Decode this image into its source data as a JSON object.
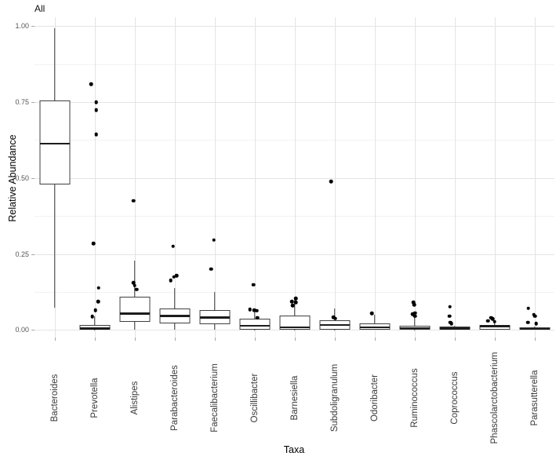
{
  "title": "All",
  "y_axis": {
    "label": "Relative Abundance"
  },
  "x_axis": {
    "label": "Taxa"
  },
  "chart_data": {
    "type": "boxplot",
    "title": "All",
    "xlabel": "Taxa",
    "ylabel": "Relative Abundance",
    "ylim": [
      0,
      1.0
    ],
    "grid": true,
    "legend": "none",
    "y_ticks": [
      {
        "label": "1.00",
        "value": 1.0
      },
      {
        "label": "0.75",
        "value": 0.75
      },
      {
        "label": "0.50",
        "value": 0.5
      },
      {
        "label": "0.25",
        "value": 0.25
      },
      {
        "label": "0.00",
        "value": 0.0
      }
    ],
    "y_minor_gridlines": [
      0.875,
      0.625,
      0.375,
      0.125
    ],
    "categories": [
      "Bacteroides",
      "Prevotella",
      "Alistipes",
      "Parabacteroides",
      "Faecalibacterium",
      "Oscillibacter",
      "Barnesiella",
      "Subdoligranulum",
      "Odoribacter",
      "Ruminococcus",
      "Coprococcus",
      "Phascolarctobacterium",
      "Parasutterella"
    ],
    "boxes": [
      {
        "taxon": "Bacteroides",
        "whisker_low": 0.073,
        "q1": 0.478,
        "median": 0.613,
        "q3": 0.756,
        "whisker_high": 0.993,
        "outliers": []
      },
      {
        "taxon": "Prevotella",
        "whisker_low": 0.0,
        "q1": 0.001,
        "median": 0.004,
        "q3": 0.016,
        "whisker_high": 0.044,
        "outliers": [
          {
            "v": 0.809,
            "dx": -4.5
          },
          {
            "v": 0.75,
            "dx": 2.0
          },
          {
            "v": 0.724,
            "dx": 2.2
          },
          {
            "v": 0.643,
            "dx": 2.2
          },
          {
            "v": 0.285,
            "dx": -1.5
          },
          {
            "v": 0.139,
            "dx": 5.0
          },
          {
            "v": 0.093,
            "dx": 4.5
          },
          {
            "v": 0.065,
            "dx": 1.0
          },
          {
            "v": 0.044,
            "dx": -3.0
          }
        ]
      },
      {
        "taxon": "Alistipes",
        "whisker_low": 0.0,
        "q1": 0.027,
        "median": 0.053,
        "q3": 0.11,
        "whisker_high": 0.229,
        "outliers": [
          {
            "v": 0.425,
            "dx": -1.5
          },
          {
            "v": 0.156,
            "dx": -1.5
          },
          {
            "v": 0.146,
            "dx": 0
          },
          {
            "v": 0.133,
            "dx": 2.5
          }
        ]
      },
      {
        "taxon": "Parabacteroides",
        "whisker_low": 0.0,
        "q1": 0.022,
        "median": 0.046,
        "q3": 0.07,
        "whisker_high": 0.137,
        "outliers": [
          {
            "v": 0.275,
            "dx": -2.0
          },
          {
            "v": 0.179,
            "dx": 2.5
          },
          {
            "v": 0.175,
            "dx": -1.0
          },
          {
            "v": 0.163,
            "dx": -5.0
          }
        ]
      },
      {
        "taxon": "Faecalibacterium",
        "whisker_low": 0.0,
        "q1": 0.02,
        "median": 0.041,
        "q3": 0.065,
        "whisker_high": 0.126,
        "outliers": [
          {
            "v": 0.296,
            "dx": -1.0
          },
          {
            "v": 0.2,
            "dx": -4.5
          }
        ]
      },
      {
        "taxon": "Oscillibacter",
        "whisker_low": 0.0,
        "q1": 0.002,
        "median": 0.014,
        "q3": 0.038,
        "whisker_high": 0.058,
        "outliers": [
          {
            "v": 0.149,
            "dx": -1.5
          },
          {
            "v": 0.067,
            "dx": -6.0
          },
          {
            "v": 0.065,
            "dx": -0.5
          },
          {
            "v": 0.064,
            "dx": 2.5
          },
          {
            "v": 0.04,
            "dx": 3.5
          }
        ]
      },
      {
        "taxon": "Barnesiella",
        "whisker_low": 0.0,
        "q1": 0.001,
        "median": 0.009,
        "q3": 0.046,
        "whisker_high": 0.104,
        "outliers": [
          {
            "v": 0.104,
            "dx": 1.8
          },
          {
            "v": 0.093,
            "dx": -3.5
          },
          {
            "v": 0.091,
            "dx": 1.5
          },
          {
            "v": 0.08,
            "dx": -2.5
          }
        ]
      },
      {
        "taxon": "Subdoligranulum",
        "whisker_low": 0.0,
        "q1": 0.001,
        "median": 0.016,
        "q3": 0.033,
        "whisker_high": 0.07,
        "outliers": [
          {
            "v": 0.489,
            "dx": -4.5
          },
          {
            "v": 0.041,
            "dx": -1.5
          },
          {
            "v": 0.038,
            "dx": 1.0
          }
        ]
      },
      {
        "taxon": "Odoribacter",
        "whisker_low": 0.0,
        "q1": 0.0,
        "median": 0.009,
        "q3": 0.022,
        "whisker_high": 0.05,
        "outliers": [
          {
            "v": 0.054,
            "dx": -3.5
          }
        ]
      },
      {
        "taxon": "Ruminococcus",
        "whisker_low": 0.0,
        "q1": 0.001,
        "median": 0.006,
        "q3": 0.013,
        "whisker_high": 0.051,
        "outliers": [
          {
            "v": 0.09,
            "dx": -1.5
          },
          {
            "v": 0.083,
            "dx": -0.5
          },
          {
            "v": 0.056,
            "dx": 0.5
          },
          {
            "v": 0.052,
            "dx": -2.5
          },
          {
            "v": 0.045,
            "dx": 0.5
          }
        ]
      },
      {
        "taxon": "Coprococcus",
        "whisker_low": 0.0,
        "q1": 0.0,
        "median": 0.004,
        "q3": 0.01,
        "whisker_high": 0.013,
        "outliers": [
          {
            "v": 0.077,
            "dx": -6.0
          },
          {
            "v": 0.045,
            "dx": -6.5
          },
          {
            "v": 0.025,
            "dx": -5.5
          },
          {
            "v": 0.021,
            "dx": -4.0
          }
        ]
      },
      {
        "taxon": "Phascolarctobacterium",
        "whisker_low": 0.0,
        "q1": 0.0,
        "median": 0.012,
        "q3": 0.016,
        "whisker_high": 0.032,
        "outliers": [
          {
            "v": 0.04,
            "dx": -4.5
          },
          {
            "v": 0.036,
            "dx": -2.5
          },
          {
            "v": 0.03,
            "dx": -8.5
          },
          {
            "v": 0.027,
            "dx": 0
          }
        ]
      },
      {
        "taxon": "Parasutterella",
        "whisker_low": 0.0,
        "q1": 0.0,
        "median": 0.003,
        "q3": 0.008,
        "whisker_high": 0.012,
        "outliers": [
          {
            "v": 0.071,
            "dx": -8.0
          },
          {
            "v": 0.051,
            "dx": -1.0
          },
          {
            "v": 0.045,
            "dx": 0.5
          },
          {
            "v": 0.025,
            "dx": -8.5
          },
          {
            "v": 0.021,
            "dx": 2.0
          }
        ]
      }
    ]
  }
}
